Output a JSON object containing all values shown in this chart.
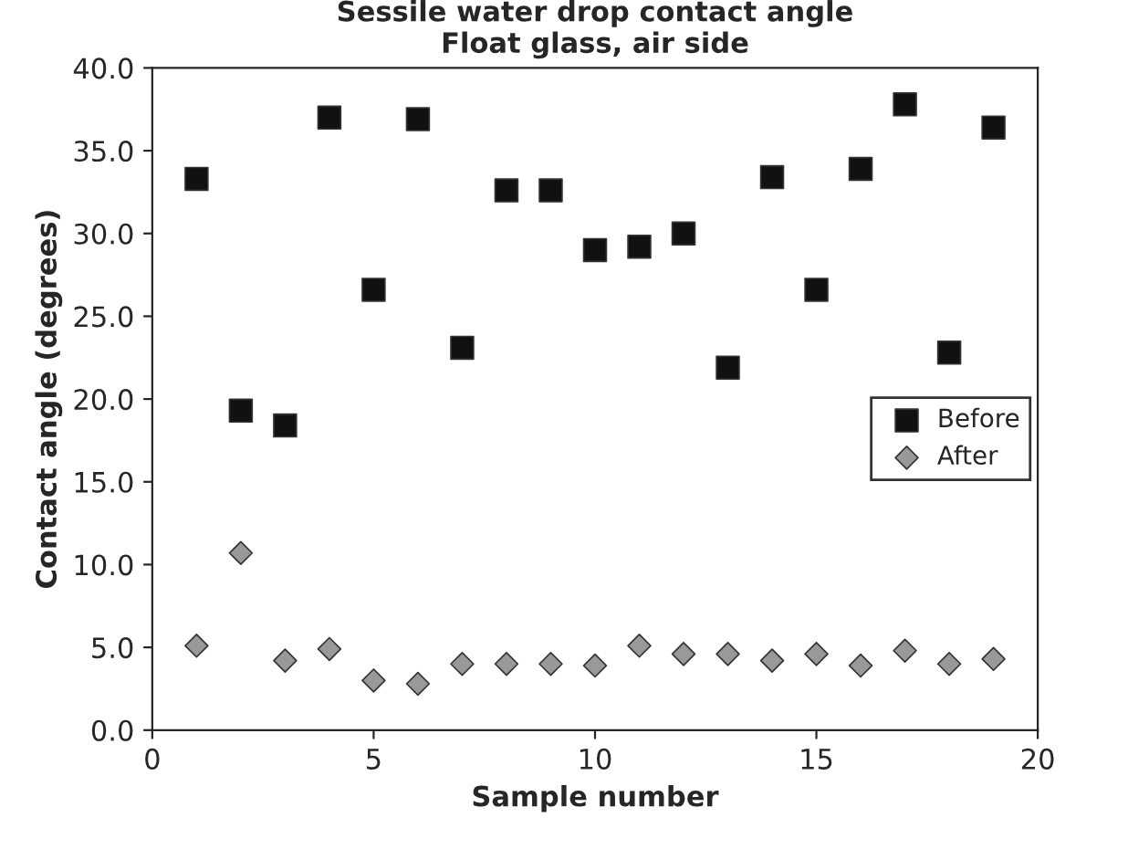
{
  "chart_data": {
    "type": "scatter",
    "title": "Sessile water drop contact angle\nFloat glass, air side",
    "xlabel": "Sample number",
    "ylabel": "Contact angle (degrees)",
    "x": [
      1,
      2,
      3,
      4,
      5,
      6,
      7,
      8,
      9,
      10,
      11,
      12,
      13,
      14,
      15,
      16,
      17,
      18,
      19
    ],
    "series": [
      {
        "name": "Before",
        "color": "#111111",
        "marker": "square",
        "values": [
          33.3,
          19.3,
          18.4,
          37.0,
          26.6,
          36.9,
          23.1,
          32.6,
          32.6,
          29.0,
          29.2,
          30.0,
          21.9,
          33.4,
          26.6,
          33.9,
          37.8,
          22.8,
          36.4
        ]
      },
      {
        "name": "After",
        "color": "#999999",
        "marker": "diamond",
        "values": [
          5.1,
          10.7,
          4.2,
          4.9,
          3.0,
          2.8,
          4.0,
          4.0,
          4.0,
          3.9,
          5.1,
          4.6,
          4.6,
          4.2,
          4.6,
          3.9,
          4.8,
          4.0,
          4.3
        ]
      }
    ],
    "xlim": [
      0,
      20
    ],
    "xticks": [
      0,
      5,
      10,
      15,
      20
    ],
    "ylim": [
      0,
      40
    ],
    "yticks": [
      {
        "value": 0,
        "label": "0.0"
      },
      {
        "value": 5,
        "label": "5.0"
      },
      {
        "value": 10,
        "label": "10.0"
      },
      {
        "value": 15,
        "label": "15.0"
      },
      {
        "value": 20,
        "label": "20.0"
      },
      {
        "value": 25,
        "label": "25.0"
      },
      {
        "value": 30,
        "label": "30.0"
      },
      {
        "value": 35,
        "label": "35.0"
      },
      {
        "value": 40,
        "label": "40.0"
      }
    ],
    "grid": false,
    "legend": "right"
  }
}
